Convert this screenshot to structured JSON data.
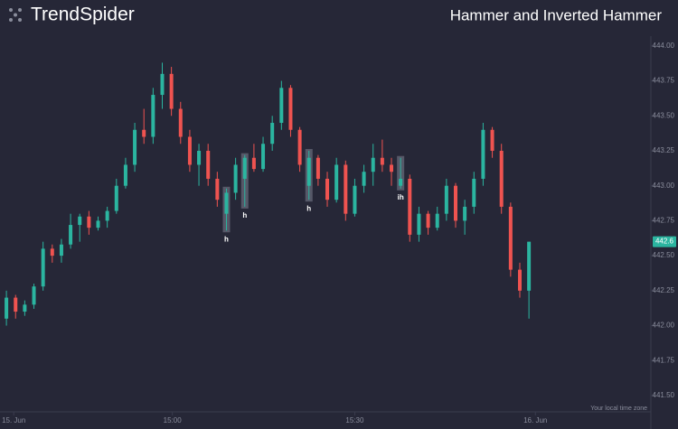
{
  "brand": {
    "name": "TrendSpider"
  },
  "chart_data": {
    "type": "candlestick",
    "title": "Hammer and Inverted Hammer",
    "series": [
      {
        "name": "Candles",
        "up_color": "#2bb5a0",
        "down_color": "#ef5350",
        "open": [
          442.05,
          442.2,
          442.1,
          442.15,
          442.28,
          442.55,
          442.5,
          442.58,
          442.72,
          442.78,
          442.7,
          442.75,
          442.82,
          443.0,
          443.15,
          443.4,
          443.35,
          443.65,
          443.8,
          443.55,
          443.35,
          443.15,
          443.25,
          443.05,
          442.8,
          442.95,
          443.05,
          443.2,
          443.12,
          443.3,
          443.45,
          443.7,
          443.4,
          443.0,
          443.2,
          443.05,
          442.9,
          443.15,
          442.8,
          443.0,
          443.1,
          443.2,
          443.15,
          443.0,
          443.05,
          442.65,
          442.8,
          442.7,
          442.8,
          443.0,
          442.75,
          442.85,
          443.05,
          443.4,
          443.25,
          442.85,
          442.4,
          442.25
        ],
        "high": [
          442.25,
          442.22,
          442.18,
          442.3,
          442.6,
          442.58,
          442.62,
          442.8,
          442.8,
          442.82,
          442.78,
          442.85,
          443.05,
          443.2,
          443.45,
          443.55,
          443.7,
          443.88,
          443.85,
          443.6,
          443.4,
          443.3,
          443.3,
          443.1,
          442.98,
          443.2,
          443.22,
          443.3,
          443.35,
          443.5,
          443.75,
          443.72,
          443.42,
          443.25,
          443.22,
          443.1,
          443.2,
          443.18,
          443.05,
          443.15,
          443.3,
          443.33,
          443.2,
          443.2,
          443.08,
          442.85,
          442.82,
          442.85,
          443.05,
          443.02,
          442.9,
          443.1,
          443.45,
          443.42,
          443.3,
          442.88,
          442.45,
          442.6
        ],
        "low": [
          442.0,
          442.05,
          442.07,
          442.12,
          442.25,
          442.45,
          442.45,
          442.55,
          442.6,
          442.65,
          442.68,
          442.7,
          442.8,
          442.98,
          443.1,
          443.3,
          443.3,
          443.55,
          443.5,
          443.3,
          443.1,
          443.0,
          443.0,
          442.85,
          442.68,
          442.9,
          442.85,
          443.1,
          443.1,
          443.25,
          443.4,
          443.35,
          443.1,
          442.9,
          443.0,
          442.85,
          442.88,
          442.75,
          442.78,
          442.95,
          443.0,
          443.1,
          443.0,
          442.98,
          442.6,
          442.6,
          442.65,
          442.68,
          442.75,
          442.7,
          442.65,
          442.8,
          443.0,
          443.2,
          442.8,
          442.35,
          442.2,
          442.05
        ],
        "close": [
          442.2,
          442.1,
          442.15,
          442.28,
          442.55,
          442.5,
          442.58,
          442.72,
          442.78,
          442.7,
          442.75,
          442.82,
          443.0,
          443.15,
          443.4,
          443.35,
          443.65,
          443.8,
          443.55,
          443.35,
          443.15,
          443.25,
          443.05,
          442.9,
          442.95,
          443.15,
          443.2,
          443.12,
          443.3,
          443.45,
          443.7,
          443.4,
          443.15,
          443.2,
          443.05,
          442.9,
          443.15,
          442.8,
          443.0,
          443.1,
          443.2,
          443.15,
          443.1,
          443.05,
          442.65,
          442.8,
          442.7,
          442.8,
          443.0,
          442.75,
          442.85,
          443.05,
          443.4,
          443.25,
          442.85,
          442.4,
          442.25,
          442.6
        ]
      }
    ],
    "last_label": "442.6",
    "annotations": [
      {
        "index": 24,
        "label": "h"
      },
      {
        "index": 26,
        "label": "h"
      },
      {
        "index": 33,
        "label": "h"
      },
      {
        "index": 43,
        "label": "ih"
      }
    ],
    "xlim": [
      -0.7,
      70.3
    ],
    "xticks": [
      {
        "value": 0.8,
        "label": "15. Jun"
      },
      {
        "value": 18.1,
        "label": "15:00"
      },
      {
        "value": 38,
        "label": "15:30"
      },
      {
        "value": 57.7,
        "label": "16. Jun"
      }
    ],
    "ylim": [
      441.39,
      444.07
    ],
    "yticks": [
      {
        "value": 441.5,
        "label": "441.50"
      },
      {
        "value": 441.75,
        "label": "441.75"
      },
      {
        "value": 442,
        "label": "442.00"
      },
      {
        "value": 442.25,
        "label": "442.25"
      },
      {
        "value": 442.5,
        "label": "442.50"
      },
      {
        "value": 442.75,
        "label": "442.75"
      },
      {
        "value": 443,
        "label": "443.00"
      },
      {
        "value": 443.25,
        "label": "443.25"
      },
      {
        "value": 443.5,
        "label": "443.50"
      },
      {
        "value": 443.75,
        "label": "443.75"
      },
      {
        "value": 444,
        "label": "444.00"
      }
    ],
    "timezone_note": "Your local time zone"
  }
}
